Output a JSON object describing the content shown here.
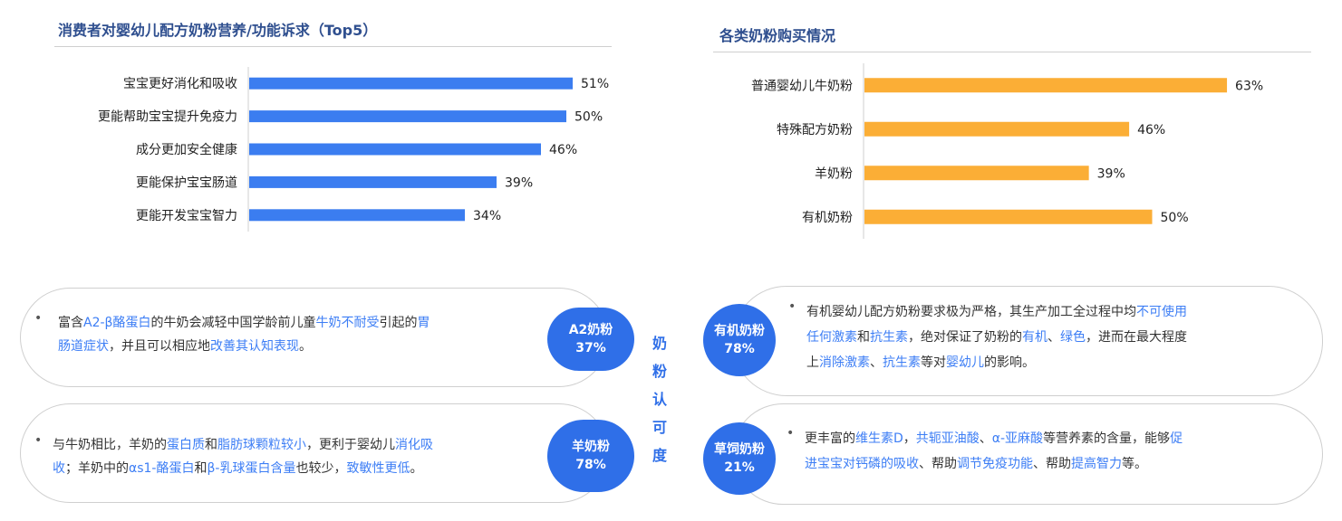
{
  "chart_data": [
    {
      "type": "bar",
      "orientation": "horizontal",
      "title": "消费者对婴幼儿配方奶粉营养/功能诉求（Top5）",
      "categories": [
        "宝宝更好消化和吸收",
        "更能帮助宝宝提升免疫力",
        "成分更加安全健康",
        "更能保护宝宝肠道",
        "更能开发宝宝智力"
      ],
      "values": [
        51,
        50,
        46,
        39,
        34
      ],
      "value_labels": [
        "51%",
        "50%",
        "46%",
        "39%",
        "34%"
      ],
      "color": "#3b7df0",
      "xlim": [
        0,
        100
      ]
    },
    {
      "type": "bar",
      "orientation": "horizontal",
      "title": "各类奶粉购买情况",
      "categories": [
        "普通婴幼儿牛奶粉",
        "特殊配方奶粉",
        "羊奶粉",
        "有机奶粉"
      ],
      "values": [
        63,
        46,
        39,
        50
      ],
      "value_labels": [
        "63%",
        "46%",
        "39%",
        "50%"
      ],
      "color": "#fbae36",
      "xlim": [
        0,
        100
      ]
    }
  ],
  "center_label": [
    "奶",
    "粉",
    "认",
    "可",
    "度"
  ],
  "cards": {
    "a2": {
      "badge_title": "A2奶粉",
      "badge_value": "37%",
      "line1": [
        {
          "t": "富含",
          "hl": false
        },
        {
          "t": "A2-β酪蛋白",
          "hl": true
        },
        {
          "t": "的牛奶会减轻中国学龄前儿童",
          "hl": false
        },
        {
          "t": "牛奶不耐受",
          "hl": true
        },
        {
          "t": "引起的",
          "hl": false
        },
        {
          "t": "胃",
          "hl": true
        }
      ],
      "line2": [
        {
          "t": "肠道症状",
          "hl": true
        },
        {
          "t": "，并且可以相应地",
          "hl": false
        },
        {
          "t": "改善其认知表现",
          "hl": true
        },
        {
          "t": "。",
          "hl": false
        }
      ]
    },
    "goat": {
      "badge_title": "羊奶粉",
      "badge_value": "78%",
      "line1": [
        {
          "t": "与牛奶相比，羊奶的",
          "hl": false
        },
        {
          "t": "蛋白质",
          "hl": true
        },
        {
          "t": "和",
          "hl": false
        },
        {
          "t": "脂肪球颗粒较小",
          "hl": true
        },
        {
          "t": "，更利于婴幼儿",
          "hl": false
        },
        {
          "t": "消化吸",
          "hl": true
        }
      ],
      "line2": [
        {
          "t": "收",
          "hl": true
        },
        {
          "t": "；羊奶中的",
          "hl": false
        },
        {
          "t": "αs1-酪蛋白",
          "hl": true
        },
        {
          "t": "和",
          "hl": false
        },
        {
          "t": "β-乳球蛋白含量",
          "hl": true
        },
        {
          "t": "也较少，",
          "hl": false
        },
        {
          "t": "致敏性更低",
          "hl": true
        },
        {
          "t": "。",
          "hl": false
        }
      ]
    },
    "organic": {
      "badge_title": "有机奶粉",
      "badge_value": "78%",
      "line1": [
        {
          "t": "有机婴幼儿配方奶粉要求极为严格，其生产加工全过程中均",
          "hl": false
        },
        {
          "t": "不可使用",
          "hl": true
        }
      ],
      "line2": [
        {
          "t": "任何激素",
          "hl": true
        },
        {
          "t": "和",
          "hl": false
        },
        {
          "t": "抗生素",
          "hl": true
        },
        {
          "t": "，绝对保证了奶粉的",
          "hl": false
        },
        {
          "t": "有机",
          "hl": true
        },
        {
          "t": "、",
          "hl": false
        },
        {
          "t": "绿色",
          "hl": true
        },
        {
          "t": "，进而在最大程度",
          "hl": false
        }
      ],
      "line3": [
        {
          "t": "上",
          "hl": false
        },
        {
          "t": "消除激素",
          "hl": true
        },
        {
          "t": "、",
          "hl": false
        },
        {
          "t": "抗生素",
          "hl": true
        },
        {
          "t": "等对",
          "hl": false
        },
        {
          "t": "婴幼儿",
          "hl": true
        },
        {
          "t": "的影响。",
          "hl": false
        }
      ]
    },
    "grass": {
      "badge_title": "草饲奶粉",
      "badge_value": "21%",
      "line1": [
        {
          "t": "更丰富的",
          "hl": false
        },
        {
          "t": "维生素D",
          "hl": true
        },
        {
          "t": "，",
          "hl": false
        },
        {
          "t": "共轭亚油酸",
          "hl": true
        },
        {
          "t": "、",
          "hl": false
        },
        {
          "t": "α-亚麻酸",
          "hl": true
        },
        {
          "t": "等营养素的含量，能够",
          "hl": false
        },
        {
          "t": "促",
          "hl": true
        }
      ],
      "line2": [
        {
          "t": "进宝宝对钙磷的吸收",
          "hl": true
        },
        {
          "t": "、帮助",
          "hl": false
        },
        {
          "t": "调节免疫功能",
          "hl": true
        },
        {
          "t": "、帮助",
          "hl": false
        },
        {
          "t": "提高智力",
          "hl": true
        },
        {
          "t": "等。",
          "hl": false
        }
      ]
    }
  },
  "bullet_symbol": "•",
  "colors": {
    "highlight": "#3d7ef5",
    "badge": "#2f6fe8",
    "title": "#2f4f8f"
  }
}
